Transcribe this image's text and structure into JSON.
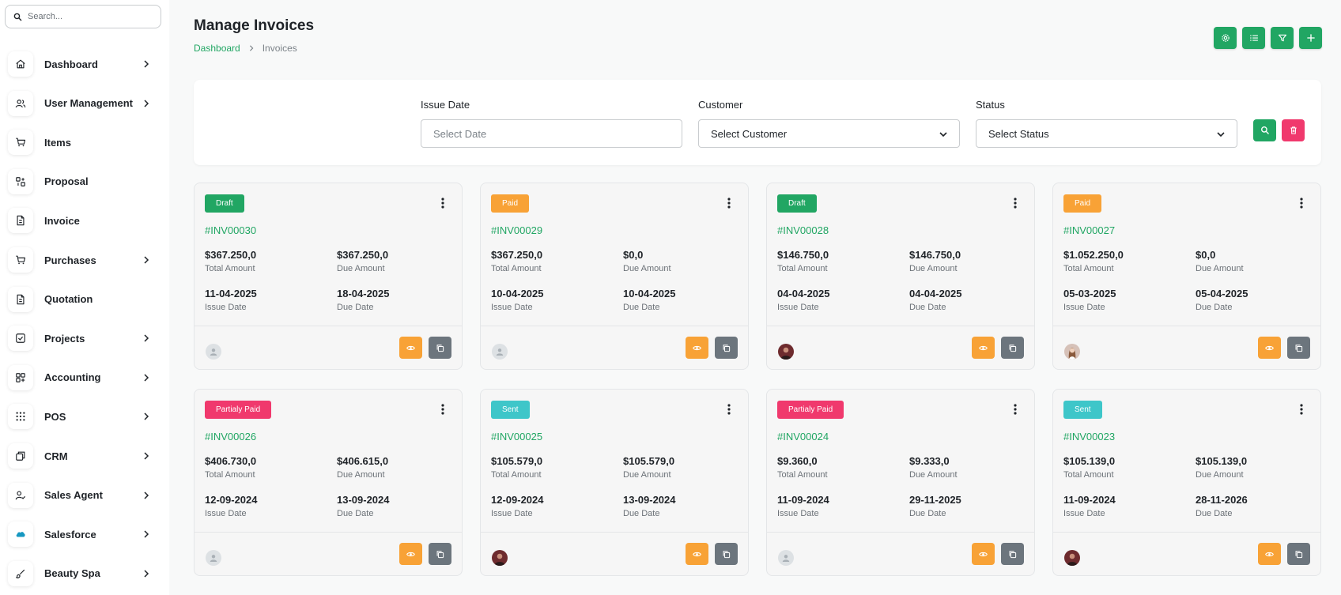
{
  "search": {
    "placeholder": "Search..."
  },
  "sidebar": {
    "items": [
      {
        "label": "Dashboard",
        "icon": "home-icon",
        "has_children": true
      },
      {
        "label": "User Management",
        "icon": "users-icon",
        "has_children": true
      },
      {
        "label": "Items",
        "icon": "cart-icon",
        "has_children": false
      },
      {
        "label": "Proposal",
        "icon": "proposal-icon",
        "has_children": false
      },
      {
        "label": "Invoice",
        "icon": "file-icon",
        "has_children": false
      },
      {
        "label": "Purchases",
        "icon": "cart-icon",
        "has_children": true
      },
      {
        "label": "Quotation",
        "icon": "file-icon",
        "has_children": false
      },
      {
        "label": "Projects",
        "icon": "checkbox-icon",
        "has_children": true
      },
      {
        "label": "Accounting",
        "icon": "grid-icon",
        "has_children": true
      },
      {
        "label": "POS",
        "icon": "dots-grid-icon",
        "has_children": true
      },
      {
        "label": "CRM",
        "icon": "layers-icon",
        "has_children": true
      },
      {
        "label": "Sales Agent",
        "icon": "user-check-icon",
        "has_children": true
      },
      {
        "label": "Salesforce",
        "icon": "salesforce-icon",
        "has_children": true
      },
      {
        "label": "Beauty Spa",
        "icon": "brush-icon",
        "has_children": true
      }
    ]
  },
  "header": {
    "title": "Manage Invoices",
    "breadcrumb": {
      "home": "Dashboard",
      "current": "Invoices"
    },
    "tools": [
      "settings-icon",
      "list-icon",
      "filter-icon",
      "plus-icon"
    ]
  },
  "filters": {
    "issue_date": {
      "label": "Issue Date",
      "placeholder": "Select Date"
    },
    "customer": {
      "label": "Customer",
      "value": "Select Customer"
    },
    "status": {
      "label": "Status",
      "value": "Select Status"
    }
  },
  "colors": {
    "accent": "#21a663",
    "draft": "#21a663",
    "paid": "#f8a236",
    "partial": "#f0396d",
    "sent": "#3ec6c9",
    "reset": "#f0396d",
    "copy": "#6c757d"
  },
  "labels": {
    "total": "Total Amount",
    "due": "Due Amount",
    "issue": "Issue Date",
    "due_date": "Due Date"
  },
  "invoices": [
    {
      "status": "Draft",
      "id": "#INV00030",
      "total": "$367.250,0",
      "due": "$367.250,0",
      "issue_date": "11-04-2025",
      "due_date": "18-04-2025",
      "avatar": "placeholder"
    },
    {
      "status": "Paid",
      "id": "#INV00029",
      "total": "$367.250,0",
      "due": "$0,0",
      "issue_date": "10-04-2025",
      "due_date": "10-04-2025",
      "avatar": "placeholder"
    },
    {
      "status": "Draft",
      "id": "#INV00028",
      "total": "$146.750,0",
      "due": "$146.750,0",
      "issue_date": "04-04-2025",
      "due_date": "04-04-2025",
      "avatar": "photo"
    },
    {
      "status": "Paid",
      "id": "#INV00027",
      "total": "$1.052.250,0",
      "due": "$0,0",
      "issue_date": "05-03-2025",
      "due_date": "05-04-2025",
      "avatar": "photo2"
    },
    {
      "status": "Partialy Paid",
      "id": "#INV00026",
      "total": "$406.730,0",
      "due": "$406.615,0",
      "issue_date": "12-09-2024",
      "due_date": "13-09-2024",
      "avatar": "placeholder"
    },
    {
      "status": "Sent",
      "id": "#INV00025",
      "total": "$105.579,0",
      "due": "$105.579,0",
      "issue_date": "12-09-2024",
      "due_date": "13-09-2024",
      "avatar": "photo"
    },
    {
      "status": "Partialy Paid",
      "id": "#INV00024",
      "total": "$9.360,0",
      "due": "$9.333,0",
      "issue_date": "11-09-2024",
      "due_date": "29-11-2025",
      "avatar": "placeholder"
    },
    {
      "status": "Sent",
      "id": "#INV00023",
      "total": "$105.139,0",
      "due": "$105.139,0",
      "issue_date": "11-09-2024",
      "due_date": "28-11-2026",
      "avatar": "photo"
    }
  ]
}
